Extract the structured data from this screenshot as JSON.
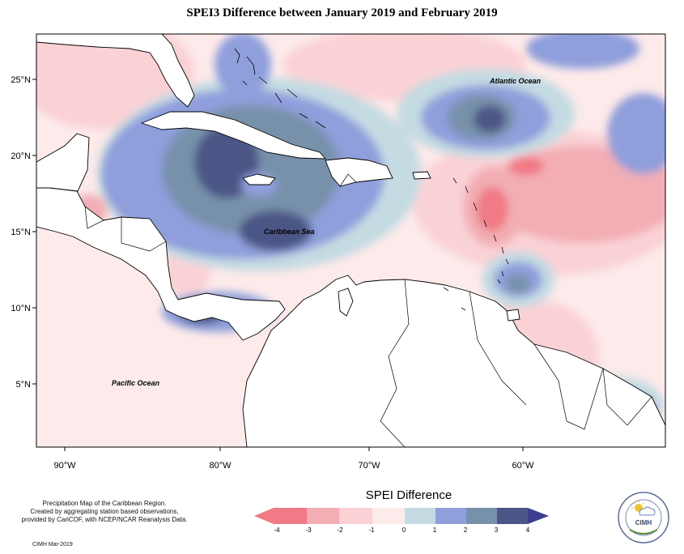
{
  "title": "SPEI3 Difference between January 2019 and February 2019",
  "map": {
    "lat_labels": [
      "25°N",
      "20°N",
      "15°N",
      "10°N",
      "5°N"
    ],
    "lon_labels": [
      "90°W",
      "80°W",
      "70°W",
      "60°W"
    ],
    "region_labels": {
      "atlantic": "Atlantic Ocean",
      "caribbean": "Caribbean Sea",
      "pacific": "Pacific Ocean"
    }
  },
  "legend": {
    "title": "SPEI Difference",
    "ticks": [
      "-4",
      "-3",
      "-2",
      "-1",
      "0",
      "1",
      "2",
      "3",
      "4"
    ],
    "colors": [
      "#f07a85",
      "#f2aeb4",
      "#fad2d6",
      "#fdeaea",
      "#c4dbe2",
      "#8f9fdc",
      "#7791aa",
      "#4c5686",
      "#3c3d8c"
    ]
  },
  "credits": {
    "line1": "Precipitation Map of the Caribbean Region.",
    "line2": "Created by aggregating station based observations,",
    "line3": "provided by CariCOF, with NCEP/NCAR Reanalysis Data.",
    "date": "CIMH Mar-2019"
  },
  "logo": {
    "text": "CIMH",
    "icon": "sun-cloud-icon"
  }
}
